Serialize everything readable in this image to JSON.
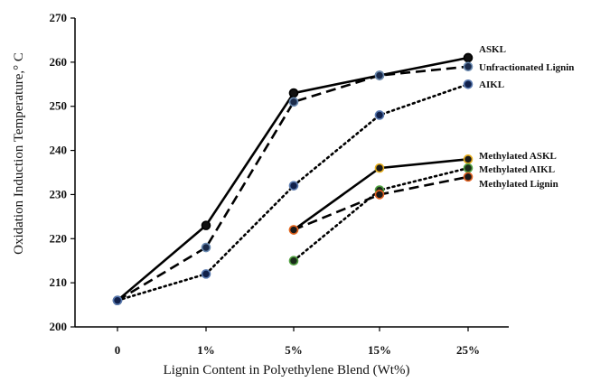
{
  "chart_data": {
    "type": "line",
    "xlabel": "Lignin Content in Polyethylene Blend (Wt%)",
    "ylabel": "Oxidation Induction Temperature,° C",
    "ylim": [
      200,
      270
    ],
    "yticks": [
      200,
      210,
      220,
      230,
      240,
      250,
      260,
      270
    ],
    "categories": [
      "0",
      "1%",
      "5%",
      "15%",
      "25%"
    ],
    "grid": false,
    "legend": "labels at line ends (right)",
    "series": [
      {
        "name": "ASKL",
        "style": "solid",
        "color": "#000000",
        "marker_fill": "#111111",
        "marker_edge": "#000000",
        "values": [
          206,
          223,
          253,
          257,
          261
        ]
      },
      {
        "name": "Unfractionated Lignin",
        "style": "dashed",
        "color": "#000000",
        "marker_fill": "#1a2a4a",
        "marker_edge": "#6a8ab0",
        "values": [
          206,
          218,
          251,
          257,
          259
        ]
      },
      {
        "name": "AIKL",
        "style": "dotted",
        "color": "#000000",
        "marker_fill": "#10204a",
        "marker_edge": "#5a7ab0",
        "values": [
          206,
          212,
          232,
          248,
          255
        ]
      },
      {
        "name": "Methylated ASKL",
        "style": "solid",
        "color": "#000000",
        "marker_fill": "#1a1a1a",
        "marker_edge": "#e8b020",
        "values": [
          null,
          null,
          222,
          236,
          238
        ]
      },
      {
        "name": "Methylated AIKL",
        "style": "dotted",
        "color": "#000000",
        "marker_fill": "#1a2a1a",
        "marker_edge": "#50a040",
        "values": [
          null,
          null,
          215,
          231,
          236
        ]
      },
      {
        "name": "Methylated Lignin",
        "style": "dashed",
        "color": "#000000",
        "marker_fill": "#1a1a1a",
        "marker_edge": "#e06020",
        "values": [
          null,
          null,
          222,
          230,
          234
        ]
      }
    ]
  }
}
